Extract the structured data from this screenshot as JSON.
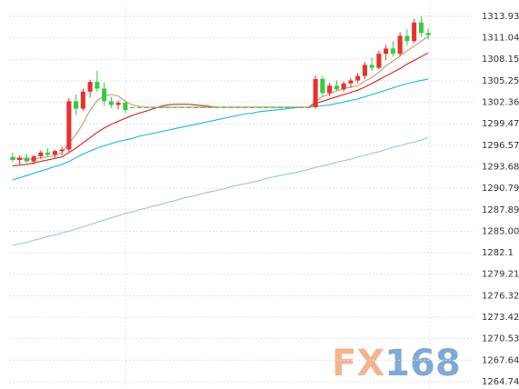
{
  "chart_data": {
    "type": "candlestick",
    "categories": [
      null,
      null,
      null,
      null,
      null,
      null,
      null,
      null,
      null,
      null,
      null,
      null,
      null,
      null,
      null,
      null,
      null,
      null,
      null,
      null,
      null,
      null,
      null,
      null,
      null,
      null,
      null,
      null,
      null,
      null,
      null,
      null,
      null,
      null,
      null,
      null,
      null,
      null,
      null,
      null,
      null,
      null,
      null,
      null,
      null,
      null,
      null,
      null,
      null,
      null,
      null,
      null,
      null,
      null,
      null,
      null,
      null,
      null,
      null,
      null
    ],
    "open": [
      1295.0,
      1294.6,
      1294.9,
      1294.4,
      1295.1,
      1295.6,
      1295.3,
      1295.8,
      1296.0,
      1302.5,
      1301.5,
      1303.8,
      1305.1,
      1304.2,
      1302.5,
      1302.0,
      1302.3,
      1301.7,
      1301.7,
      1301.7,
      1301.7,
      1301.7,
      1301.7,
      1301.7,
      1301.7,
      1301.7,
      1301.7,
      1301.7,
      1301.7,
      1301.7,
      1301.7,
      1301.7,
      1301.7,
      1301.7,
      1301.7,
      1301.7,
      1301.7,
      1301.7,
      1301.7,
      1301.7,
      1301.7,
      1301.7,
      1301.7,
      1301.7,
      1305.5,
      1303.6,
      1304.6,
      1304.1,
      1304.9,
      1305.3,
      1305.9,
      1307.4,
      1307.0,
      1308.9,
      1309.6,
      1308.9,
      1311.3,
      1310.6,
      1313.1,
      1311.7
    ],
    "high": [
      1295.6,
      1295.2,
      1295.4,
      1295.3,
      1295.9,
      1296.2,
      1296.0,
      1296.4,
      1302.9,
      1303.4,
      1304.2,
      1305.4,
      1306.6,
      1305.0,
      1303.1,
      1302.6,
      1302.5,
      1301.7,
      1301.7,
      1301.7,
      1301.7,
      1301.7,
      1301.7,
      1301.7,
      1301.7,
      1301.7,
      1301.7,
      1301.7,
      1301.7,
      1301.7,
      1301.7,
      1301.7,
      1301.7,
      1301.7,
      1301.7,
      1301.7,
      1301.7,
      1301.7,
      1301.7,
      1301.7,
      1301.7,
      1301.7,
      1301.7,
      1306.0,
      1305.9,
      1305.0,
      1305.3,
      1305.2,
      1305.6,
      1306.3,
      1307.8,
      1308.4,
      1309.3,
      1310.1,
      1310.6,
      1311.8,
      1312.2,
      1313.6,
      1314.0,
      1312.3
    ],
    "low": [
      1294.3,
      1293.9,
      1294.2,
      1294.0,
      1294.7,
      1295.0,
      1294.8,
      1295.2,
      1295.7,
      1300.6,
      1301.2,
      1303.0,
      1303.8,
      1301.9,
      1301.6,
      1301.4,
      1300.9,
      1301.7,
      1301.7,
      1301.7,
      1301.7,
      1301.7,
      1301.7,
      1301.7,
      1301.7,
      1301.7,
      1301.7,
      1301.7,
      1301.7,
      1301.7,
      1301.7,
      1301.7,
      1301.7,
      1301.7,
      1301.7,
      1301.7,
      1301.7,
      1301.7,
      1301.7,
      1301.7,
      1301.7,
      1301.7,
      1301.7,
      1301.5,
      1303.2,
      1303.2,
      1303.9,
      1303.8,
      1304.3,
      1304.9,
      1305.5,
      1306.6,
      1306.8,
      1308.0,
      1308.5,
      1308.6,
      1310.0,
      1310.3,
      1311.2,
      1310.8
    ],
    "close": [
      1294.6,
      1294.9,
      1294.4,
      1295.1,
      1295.6,
      1295.3,
      1295.8,
      1296.0,
      1302.5,
      1301.5,
      1303.8,
      1305.1,
      1304.2,
      1302.5,
      1302.0,
      1302.3,
      1301.3,
      1301.7,
      1301.7,
      1301.7,
      1301.7,
      1301.7,
      1301.7,
      1301.7,
      1301.7,
      1301.7,
      1301.7,
      1301.7,
      1301.7,
      1301.7,
      1301.7,
      1301.7,
      1301.7,
      1301.7,
      1301.7,
      1301.7,
      1301.7,
      1301.7,
      1301.7,
      1301.7,
      1301.7,
      1301.7,
      1301.7,
      1305.5,
      1303.6,
      1304.6,
      1304.1,
      1304.9,
      1305.3,
      1305.9,
      1307.4,
      1307.0,
      1308.9,
      1309.6,
      1308.9,
      1311.3,
      1310.6,
      1313.1,
      1311.7,
      1311.4
    ],
    "up_color": "#e8322e",
    "down_color": "#33cc44",
    "lines": [
      {
        "color": "#9ecbe8",
        "values": [
          1283.1,
          1283.3,
          1283.5,
          1283.8,
          1284.0,
          1284.3,
          1284.5,
          1284.8,
          1285.0,
          1285.3,
          1285.6,
          1285.9,
          1286.2,
          1286.5,
          1286.8,
          1287.1,
          1287.4,
          1287.6,
          1287.9,
          1288.1,
          1288.4,
          1288.6,
          1288.9,
          1289.1,
          1289.4,
          1289.6,
          1289.8,
          1290.1,
          1290.3,
          1290.5,
          1290.7,
          1291.0,
          1291.2,
          1291.4,
          1291.6,
          1291.8,
          1292.1,
          1292.3,
          1292.5,
          1292.7,
          1292.9,
          1293.1,
          1293.3,
          1293.6,
          1293.8,
          1294.0,
          1294.3,
          1294.5,
          1294.7,
          1295.0,
          1295.2,
          1295.5,
          1295.7,
          1296.0,
          1296.3,
          1296.5,
          1296.8,
          1297.0,
          1297.3,
          1297.6
        ]
      },
      {
        "color": "#27c3d6",
        "values": [
          1291.9,
          1292.2,
          1292.5,
          1292.8,
          1293.1,
          1293.4,
          1293.7,
          1294.0,
          1294.4,
          1294.9,
          1295.4,
          1295.8,
          1296.2,
          1296.5,
          1296.8,
          1297.1,
          1297.3,
          1297.5,
          1297.8,
          1298.0,
          1298.2,
          1298.4,
          1298.6,
          1298.8,
          1299.0,
          1299.2,
          1299.4,
          1299.6,
          1299.8,
          1300.0,
          1300.2,
          1300.4,
          1300.6,
          1300.8,
          1300.9,
          1301.1,
          1301.2,
          1301.3,
          1301.4,
          1301.5,
          1301.6,
          1301.7,
          1301.7,
          1301.8,
          1301.9,
          1302.0,
          1302.2,
          1302.4,
          1302.6,
          1302.8,
          1303.1,
          1303.4,
          1303.7,
          1304.0,
          1304.3,
          1304.6,
          1304.9,
          1305.1,
          1305.3,
          1305.5
        ]
      },
      {
        "color": "#d9302a",
        "values": [
          1293.8,
          1293.9,
          1294.0,
          1294.2,
          1294.4,
          1294.6,
          1294.8,
          1295.0,
          1295.6,
          1296.2,
          1296.9,
          1297.6,
          1298.3,
          1298.9,
          1299.4,
          1299.8,
          1300.2,
          1300.6,
          1300.9,
          1301.2,
          1301.5,
          1301.8,
          1302.0,
          1302.1,
          1302.1,
          1302.1,
          1302.0,
          1301.9,
          1301.8,
          1301.7,
          1301.7,
          1301.7,
          1301.7,
          1301.7,
          1301.7,
          1301.7,
          1301.7,
          1301.7,
          1301.7,
          1301.7,
          1301.7,
          1301.7,
          1301.7,
          1302.2,
          1302.5,
          1302.8,
          1303.1,
          1303.4,
          1303.7,
          1304.0,
          1304.4,
          1304.9,
          1305.4,
          1305.9,
          1306.4,
          1306.9,
          1307.5,
          1308.0,
          1308.5,
          1309.0
        ]
      },
      {
        "color": "#c9a27a",
        "values": [
          1294.8,
          1294.8,
          1294.7,
          1294.7,
          1294.9,
          1295.0,
          1295.2,
          1295.6,
          1296.9,
          1298.0,
          1299.5,
          1301.3,
          1302.6,
          1303.2,
          1303.4,
          1303.2,
          1302.5,
          1302.0,
          1301.8,
          1301.7,
          1301.7,
          1301.7,
          1301.7,
          1301.7,
          1301.7,
          1301.7,
          1301.7,
          1301.7,
          1301.7,
          1301.7,
          1301.7,
          1301.7,
          1301.7,
          1301.7,
          1301.7,
          1301.7,
          1301.7,
          1301.7,
          1301.7,
          1301.7,
          1301.7,
          1301.7,
          1301.7,
          1302.5,
          1303.1,
          1303.5,
          1303.9,
          1304.2,
          1304.4,
          1304.6,
          1305.2,
          1305.7,
          1306.4,
          1307.3,
          1307.9,
          1308.6,
          1309.3,
          1309.9,
          1310.6,
          1311.2
        ]
      }
    ],
    "ylim": [
      1263.76,
      1315.52
    ],
    "yticks": [
      1313.93,
      1311.04,
      1308.15,
      1305.25,
      1302.36,
      1299.47,
      1296.57,
      1293.68,
      1290.79,
      1287.89,
      {
        "value": 1285,
        "label": "1285.00"
      },
      1282.1,
      1279.21,
      1276.32,
      1273.42,
      1270.53,
      1267.64,
      1264.74
    ],
    "grid": true,
    "watermark": {
      "prefix": "FX",
      "suffix": "168"
    }
  }
}
